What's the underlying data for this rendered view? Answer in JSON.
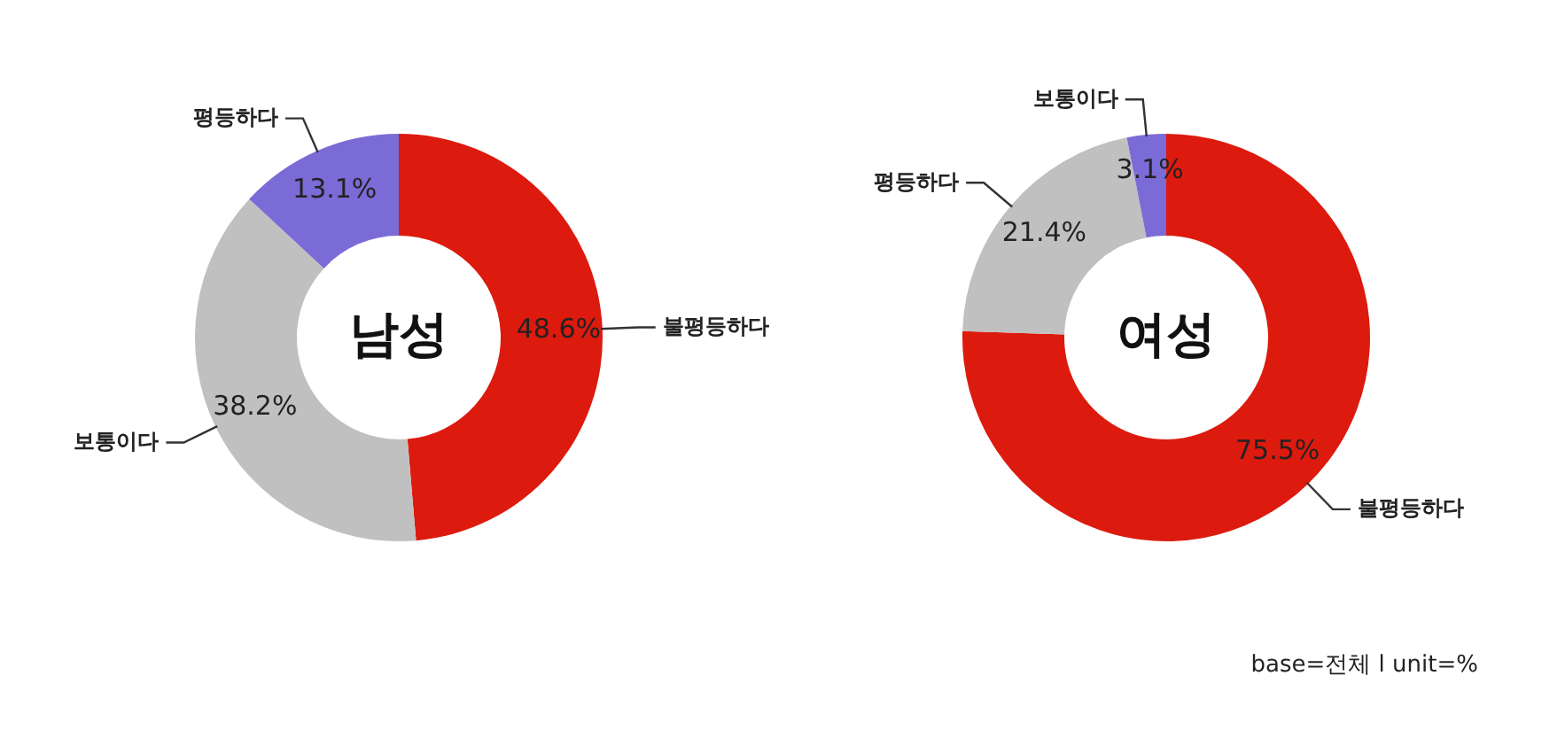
{
  "chart_data": [
    {
      "type": "donut",
      "title": "남성",
      "categories": [
        "불평등하다",
        "보통이다",
        "평등하다"
      ],
      "values": [
        48.6,
        38.2,
        13.1
      ],
      "colors": [
        "#dd1a0e",
        "#c0c0c0",
        "#7b6bd6"
      ],
      "value_labels": [
        "48.6%",
        "38.2%",
        "13.1%"
      ],
      "legend": false
    },
    {
      "type": "donut",
      "title": "여성",
      "categories": [
        "불평등하다",
        "평등하다",
        "보통이다"
      ],
      "values": [
        75.5,
        21.4,
        3.1
      ],
      "colors": [
        "#dd1a0e",
        "#c0c0c0",
        "#7b6bd6"
      ],
      "value_labels": [
        "75.5%",
        "21.4%",
        "3.1%"
      ],
      "legend": false,
      "annotations": [
        "base=전체 l unit=%"
      ]
    }
  ]
}
